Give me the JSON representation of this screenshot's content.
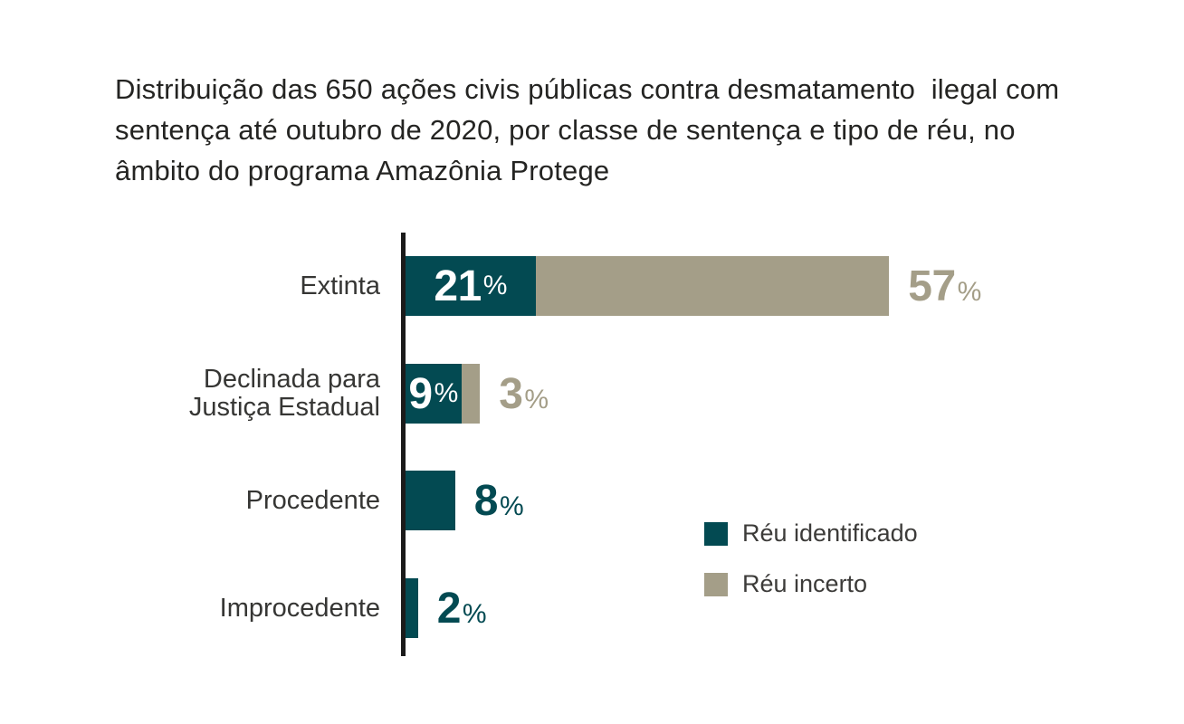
{
  "title": {
    "lines": [
      "Distribuição das 650 ações civis públicas contra desmatamento  ilegal com",
      "sentença até outubro de 2020, por classe de sentença e tipo de réu, no",
      "âmbito do programa Amazônia Protege"
    ]
  },
  "colors": {
    "identified": "#034a52",
    "uncertain": "#a49e88",
    "axis": "#1b1b1b",
    "title_text": "#242422",
    "label_text": "#363634"
  },
  "legend": {
    "items": [
      {
        "label": "Réu identificado",
        "color": "#034a52"
      },
      {
        "label": "Réu incerto",
        "color": "#a49e88"
      }
    ]
  },
  "chart_data": {
    "type": "bar",
    "orientation": "horizontal",
    "title": "Distribuição das 650 ações civis públicas contra desmatamento ilegal com sentença até outubro de 2020, por classe de sentença e tipo de réu, no âmbito do programa Amazônia Protege",
    "unit": "%",
    "xlim": [
      0,
      80
    ],
    "grid": false,
    "legend_position": "middle-right",
    "categories": [
      "Extinta",
      "Declinada para\nJustiça Estadual",
      "Procedente",
      "Improcedente"
    ],
    "series": [
      {
        "name": "Réu identificado",
        "color": "#034a52",
        "values": [
          21,
          9,
          8,
          2
        ]
      },
      {
        "name": "Réu incerto",
        "color": "#a49e88",
        "values": [
          57,
          3,
          0,
          0
        ]
      }
    ],
    "rows": [
      {
        "label": "Extinta",
        "identified": 21,
        "uncertain": 57,
        "identified_label_position": "inside"
      },
      {
        "label": "Declinada para\nJustiça Estadual",
        "identified": 9,
        "uncertain": 3,
        "identified_label_position": "inside"
      },
      {
        "label": "Procedente",
        "identified": 8,
        "uncertain": null,
        "identified_label_position": "outside"
      },
      {
        "label": "Improcedente",
        "identified": 2,
        "uncertain": null,
        "identified_label_position": "outside"
      }
    ]
  }
}
